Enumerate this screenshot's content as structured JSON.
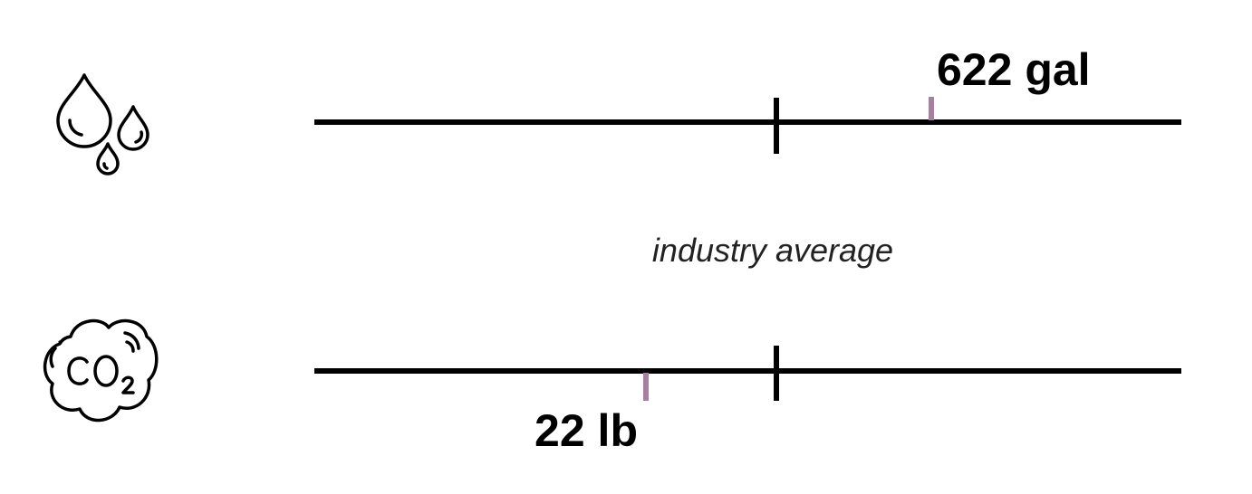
{
  "chart_data": {
    "type": "bar",
    "subtype": "benchmark-lines",
    "annotation": "industry average",
    "colors": {
      "line": "#000000",
      "marker": "#a77f9f"
    },
    "rows": [
      {
        "icon": "water-drops-icon",
        "value_label": "622 gal",
        "value": 622,
        "unit": "gal",
        "relative_to_average": 0.19,
        "label_side": "above"
      },
      {
        "icon": "co2-cloud-icon",
        "value_label": "22 lb",
        "value": 22,
        "unit": "lb",
        "relative_to_average": -0.16,
        "label_side": "below"
      }
    ]
  }
}
